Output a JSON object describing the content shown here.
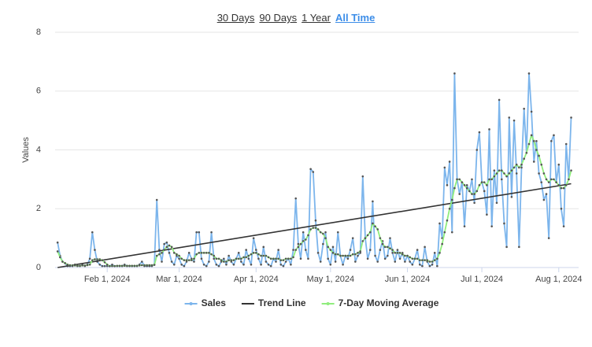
{
  "range_buttons": [
    {
      "label": "30 Days",
      "active": false
    },
    {
      "label": "90 Days",
      "active": false
    },
    {
      "label": "1 Year",
      "active": false
    },
    {
      "label": "All Time",
      "active": true
    }
  ],
  "chart_data": {
    "type": "line",
    "y_label": "Values",
    "xlim": [
      "2024-01-11",
      "2024-08-09"
    ],
    "ylim": [
      0,
      8
    ],
    "yticks": [
      0,
      2,
      4,
      6,
      8
    ],
    "grid": true,
    "xticks": [
      {
        "value": "2024-02-01",
        "label": "Feb 1, 2024"
      },
      {
        "value": "2024-03-01",
        "label": "Mar 1, 2024"
      },
      {
        "value": "2024-04-01",
        "label": "Apr 1, 2024"
      },
      {
        "value": "2024-05-01",
        "label": "May 1, 2024"
      },
      {
        "value": "2024-06-01",
        "label": "Jun 1, 2024"
      },
      {
        "value": "2024-07-01",
        "label": "Jul 1, 2024"
      },
      {
        "value": "2024-08-01",
        "label": "Aug 1, 2024"
      }
    ],
    "start": "2024-01-12",
    "series": [
      {
        "name": "Sales",
        "color": "#7cb5ec",
        "dates": "daily",
        "values": [
          0.85,
          0.4,
          0.2,
          0.15,
          0.05,
          0.05,
          0.05,
          0.1,
          0.05,
          0.05,
          0.1,
          0.05,
          0.1,
          0.3,
          1.2,
          0.6,
          0.2,
          0.1,
          0.05,
          0.05,
          0.05,
          0.05,
          0.1,
          0.05,
          0.05,
          0.05,
          0.05,
          0.1,
          0.05,
          0.05,
          0.05,
          0.05,
          0.05,
          0.1,
          0.2,
          0.05,
          0.05,
          0.05,
          0.05,
          0.1,
          2.3,
          0.6,
          0.2,
          0.8,
          0.85,
          0.5,
          0.2,
          0.1,
          0.4,
          0.3,
          0.1,
          0.05,
          0.2,
          0.5,
          0.3,
          0.2,
          1.2,
          1.2,
          0.3,
          0.1,
          0.05,
          0.2,
          1.2,
          0.3,
          0.1,
          0.05,
          0.2,
          0.3,
          0.1,
          0.4,
          0.2,
          0.1,
          0.3,
          0.5,
          0.2,
          0.1,
          0.6,
          0.3,
          0.1,
          1.0,
          0.6,
          0.3,
          0.1,
          0.7,
          0.2,
          0.1,
          0.05,
          0.3,
          0.2,
          0.6,
          0.1,
          0.05,
          0.2,
          0.3,
          0.1,
          0.6,
          2.35,
          0.8,
          0.3,
          1.2,
          0.6,
          0.3,
          3.35,
          3.25,
          1.6,
          0.5,
          0.2,
          0.8,
          1.2,
          0.3,
          0.1,
          0.7,
          0.2,
          1.2,
          0.4,
          0.1,
          0.4,
          0.3,
          0.6,
          1.0,
          0.2,
          0.4,
          0.5,
          3.1,
          1.0,
          0.3,
          0.6,
          2.25,
          0.4,
          0.2,
          0.6,
          0.9,
          0.3,
          0.4,
          1.0,
          0.5,
          0.2,
          0.6,
          0.3,
          0.5,
          0.2,
          0.4,
          0.2,
          0.1,
          0.3,
          0.6,
          0.1,
          0.05,
          0.7,
          0.2,
          0.05,
          0.1,
          0.5,
          0.05,
          1.5,
          1.0,
          3.4,
          2.8,
          3.6,
          1.2,
          6.6,
          3.0,
          2.5,
          2.9,
          1.4,
          2.8,
          2.6,
          3.0,
          2.2,
          4.0,
          4.6,
          2.9,
          2.6,
          1.8,
          4.7,
          1.4,
          3.3,
          2.2,
          5.7,
          3.0,
          1.5,
          0.7,
          5.1,
          2.4,
          5.0,
          3.2,
          0.7,
          3.4,
          5.4,
          3.9,
          6.6,
          5.3,
          3.6,
          4.3,
          3.2,
          2.9,
          2.3,
          2.5,
          1.0,
          4.3,
          4.5,
          2.9,
          3.5,
          2.0,
          1.4,
          4.2,
          3.0,
          5.1
        ]
      },
      {
        "name": "Trend Line",
        "color": "#333333",
        "x": [
          "2024-01-12",
          "2024-08-06"
        ],
        "values": [
          0,
          2.85
        ]
      },
      {
        "name": "7-Day Moving Average",
        "color": "#90ed7d",
        "dates": "daily",
        "values": [
          0.55,
          0.35,
          0.2,
          0.15,
          0.1,
          0.08,
          0.07,
          0.07,
          0.06,
          0.06,
          0.07,
          0.07,
          0.08,
          0.1,
          0.25,
          0.28,
          0.28,
          0.28,
          0.25,
          0.18,
          0.1,
          0.05,
          0.05,
          0.05,
          0.06,
          0.06,
          0.06,
          0.06,
          0.06,
          0.06,
          0.06,
          0.06,
          0.06,
          0.07,
          0.08,
          0.08,
          0.08,
          0.08,
          0.08,
          0.09,
          0.4,
          0.45,
          0.5,
          0.6,
          0.7,
          0.75,
          0.7,
          0.5,
          0.45,
          0.4,
          0.3,
          0.25,
          0.25,
          0.25,
          0.25,
          0.3,
          0.45,
          0.5,
          0.5,
          0.5,
          0.5,
          0.5,
          0.45,
          0.4,
          0.3,
          0.3,
          0.25,
          0.2,
          0.2,
          0.25,
          0.25,
          0.25,
          0.3,
          0.3,
          0.3,
          0.35,
          0.35,
          0.4,
          0.45,
          0.5,
          0.5,
          0.45,
          0.4,
          0.4,
          0.4,
          0.35,
          0.3,
          0.3,
          0.3,
          0.3,
          0.25,
          0.25,
          0.3,
          0.3,
          0.3,
          0.35,
          0.6,
          0.7,
          0.8,
          0.9,
          0.95,
          1.1,
          1.3,
          1.35,
          1.35,
          1.3,
          1.2,
          1.15,
          1.0,
          0.7,
          0.6,
          0.5,
          0.45,
          0.45,
          0.4,
          0.4,
          0.4,
          0.4,
          0.4,
          0.45,
          0.45,
          0.5,
          0.55,
          0.9,
          1.0,
          1.1,
          1.2,
          1.5,
          1.4,
          1.3,
          1.0,
          0.8,
          0.7,
          0.7,
          0.65,
          0.6,
          0.5,
          0.5,
          0.5,
          0.45,
          0.4,
          0.4,
          0.35,
          0.3,
          0.3,
          0.3,
          0.25,
          0.25,
          0.25,
          0.25,
          0.2,
          0.2,
          0.25,
          0.3,
          0.5,
          0.8,
          1.2,
          1.6,
          2.0,
          2.3,
          2.7,
          3.0,
          3.0,
          2.9,
          2.8,
          2.7,
          2.6,
          2.5,
          2.5,
          2.6,
          2.8,
          2.9,
          2.9,
          2.8,
          3.0,
          3.0,
          3.1,
          3.2,
          3.3,
          3.3,
          3.2,
          3.1,
          3.2,
          3.3,
          3.4,
          3.5,
          3.4,
          3.5,
          3.7,
          3.9,
          4.2,
          4.5,
          4.3,
          4.0,
          3.8,
          3.5,
          3.2,
          3.0,
          2.9,
          3.0,
          3.0,
          2.9,
          2.8,
          2.7,
          2.7,
          2.8,
          3.0,
          3.3
        ]
      }
    ]
  }
}
